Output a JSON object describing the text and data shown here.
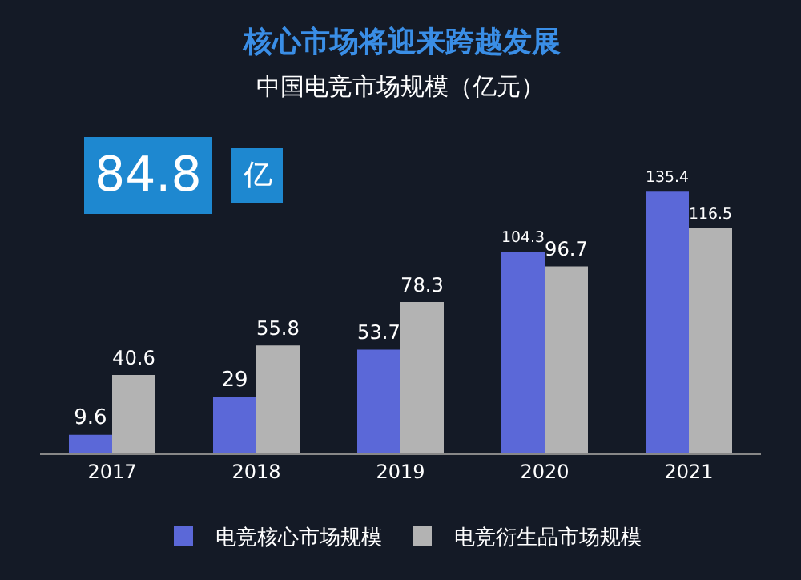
{
  "chart_data": {
    "type": "bar",
    "title": "核心市场将迎来跨越发展",
    "subtitle": "中国电竞市场规模（亿元）",
    "categories": [
      "2017",
      "2018",
      "2019",
      "2020",
      "2021"
    ],
    "series": [
      {
        "name": "电竞核心市场规模",
        "color": "#5b68d8",
        "values": [
          9.6,
          29,
          53.7,
          104.3,
          135.4
        ]
      },
      {
        "name": "电竞衍生品市场规模",
        "color": "#b3b3b3",
        "values": [
          40.6,
          55.8,
          78.3,
          96.7,
          116.5
        ]
      }
    ],
    "annotations": [
      "84.8",
      "亿"
    ],
    "data_labels": true,
    "legend": "bottom",
    "grid": false
  }
}
